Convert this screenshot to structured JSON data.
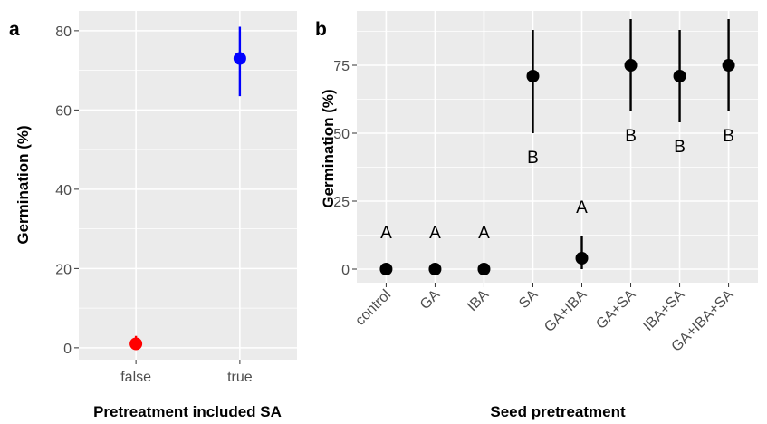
{
  "panels": {
    "a": {
      "tag": "a"
    },
    "b": {
      "tag": "b"
    }
  },
  "chart_data": [
    {
      "type": "scatter",
      "panel": "a",
      "xlabel": "Pretreatment included SA",
      "ylabel": "Germination (%)",
      "categories": [
        "false",
        "true"
      ],
      "ylim": [
        -3,
        85
      ],
      "yticks": [
        0,
        20,
        40,
        60,
        80
      ],
      "points": [
        {
          "category": "false",
          "y": 1,
          "lower": 0,
          "upper": 3,
          "color": "#ff0000"
        },
        {
          "category": "true",
          "y": 73,
          "lower": 63.5,
          "upper": 81,
          "color": "#0000ff"
        }
      ],
      "grid": true
    },
    {
      "type": "scatter",
      "panel": "b",
      "xlabel": "Seed pretreatment",
      "ylabel": "Germination (%)",
      "categories": [
        "control",
        "GA",
        "IBA",
        "SA",
        "GA+IBA",
        "GA+SA",
        "IBA+SA",
        "GA+IBA+SA"
      ],
      "ylim": [
        -5,
        95
      ],
      "yticks": [
        0,
        25,
        50,
        75
      ],
      "points": [
        {
          "category": "control",
          "y": 0,
          "lower": null,
          "upper": null,
          "group": "A",
          "color": "#000000"
        },
        {
          "category": "GA",
          "y": 0,
          "lower": null,
          "upper": null,
          "group": "A",
          "color": "#000000"
        },
        {
          "category": "IBA",
          "y": 0,
          "lower": null,
          "upper": null,
          "group": "A",
          "color": "#000000"
        },
        {
          "category": "SA",
          "y": 71,
          "lower": 50,
          "upper": 88,
          "group": "B",
          "color": "#000000"
        },
        {
          "category": "GA+IBA",
          "y": 4,
          "lower": 0,
          "upper": 12,
          "group": "A",
          "color": "#000000"
        },
        {
          "category": "GA+SA",
          "y": 75,
          "lower": 58,
          "upper": 92,
          "group": "B",
          "color": "#000000"
        },
        {
          "category": "IBA+SA",
          "y": 71,
          "lower": 54,
          "upper": 88,
          "group": "B",
          "color": "#000000"
        },
        {
          "category": "GA+IBA+SA",
          "y": 75,
          "lower": 58,
          "upper": 92,
          "group": "B",
          "color": "#000000"
        }
      ],
      "grid": true
    }
  ]
}
